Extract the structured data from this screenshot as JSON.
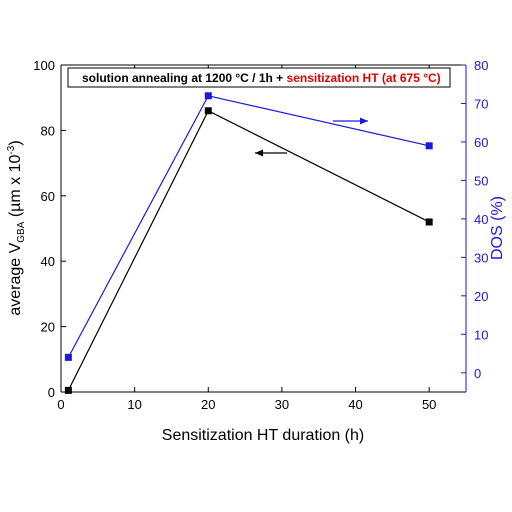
{
  "chart_data": {
    "type": "line",
    "x": [
      1,
      20,
      50
    ],
    "xlim": [
      0,
      55
    ],
    "xticks": [
      0,
      10,
      20,
      30,
      40,
      50
    ],
    "xtick_labels": [
      "0",
      "10",
      "20",
      "30",
      "40",
      "50"
    ],
    "xlabel": "Sensitization HT duration (h)",
    "y_left": {
      "label_prefix": "average V",
      "label_sub": "GBA",
      "label_mid": " (µm x 10",
      "label_sup": "-3",
      "label_suffix": ")",
      "lim": [
        0,
        100
      ],
      "ticks": [
        0,
        20,
        40,
        60,
        80,
        100
      ],
      "tick_labels": [
        "0",
        "20",
        "40",
        "60",
        "80",
        "100"
      ],
      "color": "#000000"
    },
    "y_right": {
      "label": "DOS (%)",
      "lim": [
        -5,
        80
      ],
      "ticks": [
        0,
        10,
        20,
        30,
        40,
        50,
        60,
        70,
        80
      ],
      "tick_labels": [
        "0",
        "10",
        "20",
        "30",
        "40",
        "50",
        "60",
        "70",
        "80"
      ],
      "color": "#1a1adc"
    },
    "series": [
      {
        "axis": "left",
        "color": "#000000",
        "values": [
          0.5,
          86,
          52
        ]
      },
      {
        "axis": "right",
        "color": "#1a1adc",
        "values": [
          4,
          72,
          59
        ]
      }
    ],
    "legend": {
      "part1": "solution annealing at 1200 °C / 1h + ",
      "part2": "sensitization HT (at 675 °C)",
      "part1_color": "#000000",
      "part2_color": "#e00000"
    },
    "arrows": [
      {
        "direction": "left",
        "axis": "left",
        "color": "#000000"
      },
      {
        "direction": "right",
        "axis": "right",
        "color": "#1a1adc"
      }
    ],
    "grid": false
  }
}
